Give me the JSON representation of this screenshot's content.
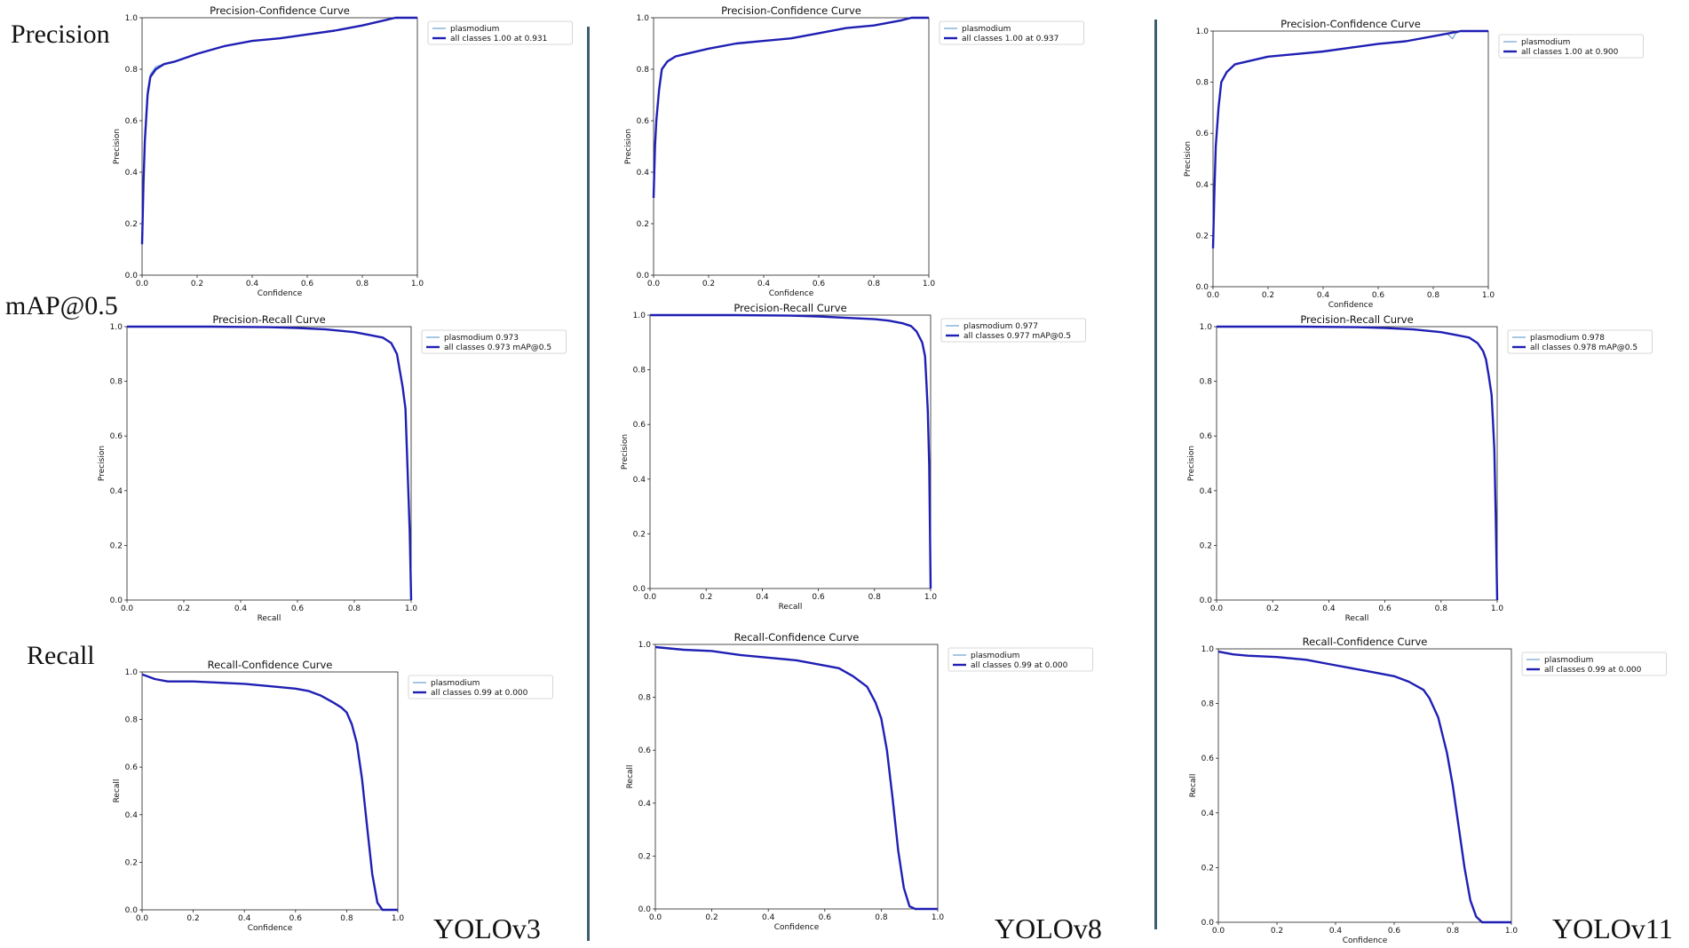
{
  "row_labels": [
    "Precision",
    "mAP@0.5",
    "Recall"
  ],
  "model_labels": [
    "YOLOv3",
    "YOLOv8",
    "YOLOv11"
  ],
  "colors": {
    "all_classes": "#1f1fb4",
    "class_line": "#6f9fd0",
    "divider": "#3b5d70"
  },
  "chart_data": [
    {
      "type": "line",
      "title": "Precision-Confidence Curve",
      "xlabel": "Confidence",
      "ylabel": "Precision",
      "xlim": [
        0,
        1
      ],
      "ylim": [
        0,
        1
      ],
      "ticks": [
        0.0,
        0.2,
        0.4,
        0.6,
        0.8,
        1.0
      ],
      "legend": "top-right",
      "series": [
        {
          "name": "plasmodium",
          "x": [
            0,
            0.005,
            0.01,
            0.02,
            0.03,
            0.05,
            0.08,
            0.12,
            0.2,
            0.3,
            0.4,
            0.5,
            0.6,
            0.7,
            0.8,
            0.88,
            0.92,
            0.95,
            1.0
          ],
          "y": [
            0.12,
            0.38,
            0.55,
            0.72,
            0.78,
            0.81,
            0.82,
            0.83,
            0.86,
            0.89,
            0.91,
            0.92,
            0.935,
            0.95,
            0.97,
            0.99,
            1.0,
            1.0,
            1.0
          ]
        },
        {
          "name": "all classes 1.00 at 0.931",
          "x": [
            0,
            0.005,
            0.01,
            0.02,
            0.03,
            0.05,
            0.08,
            0.12,
            0.2,
            0.3,
            0.4,
            0.5,
            0.6,
            0.7,
            0.8,
            0.88,
            0.92,
            0.95,
            1.0
          ],
          "y": [
            0.12,
            0.36,
            0.52,
            0.7,
            0.77,
            0.8,
            0.82,
            0.83,
            0.86,
            0.89,
            0.91,
            0.92,
            0.935,
            0.95,
            0.97,
            0.99,
            1.0,
            1.0,
            1.0
          ]
        }
      ]
    },
    {
      "type": "line",
      "title": "Precision-Confidence Curve",
      "xlabel": "Confidence",
      "ylabel": "Precision",
      "xlim": [
        0,
        1
      ],
      "ylim": [
        0,
        1
      ],
      "ticks": [
        0.0,
        0.2,
        0.4,
        0.6,
        0.8,
        1.0
      ],
      "legend": "top-right",
      "series": [
        {
          "name": "plasmodium",
          "x": [
            0,
            0.005,
            0.01,
            0.02,
            0.03,
            0.05,
            0.08,
            0.12,
            0.2,
            0.3,
            0.4,
            0.5,
            0.6,
            0.7,
            0.8,
            0.9,
            0.937,
            1.0
          ],
          "y": [
            0.3,
            0.5,
            0.6,
            0.72,
            0.8,
            0.83,
            0.85,
            0.86,
            0.88,
            0.9,
            0.91,
            0.92,
            0.94,
            0.96,
            0.97,
            0.99,
            1.0,
            1.0
          ]
        },
        {
          "name": "all classes 1.00 at 0.937",
          "x": [
            0,
            0.005,
            0.01,
            0.02,
            0.03,
            0.05,
            0.08,
            0.12,
            0.2,
            0.3,
            0.4,
            0.5,
            0.6,
            0.7,
            0.8,
            0.9,
            0.937,
            1.0
          ],
          "y": [
            0.3,
            0.5,
            0.6,
            0.72,
            0.8,
            0.83,
            0.85,
            0.86,
            0.88,
            0.9,
            0.91,
            0.92,
            0.94,
            0.96,
            0.97,
            0.99,
            1.0,
            1.0
          ]
        }
      ]
    },
    {
      "type": "line",
      "title": "Precision-Confidence Curve",
      "xlabel": "Confidence",
      "ylabel": "Precision",
      "xlim": [
        0,
        1
      ],
      "ylim": [
        0,
        1
      ],
      "ticks": [
        0.0,
        0.2,
        0.4,
        0.6,
        0.8,
        1.0
      ],
      "legend": "top-right",
      "series": [
        {
          "name": "plasmodium",
          "x": [
            0,
            0.005,
            0.01,
            0.02,
            0.03,
            0.05,
            0.08,
            0.12,
            0.2,
            0.3,
            0.4,
            0.5,
            0.6,
            0.7,
            0.8,
            0.85,
            0.87,
            0.88,
            0.9,
            1.0
          ],
          "y": [
            0.15,
            0.4,
            0.55,
            0.7,
            0.8,
            0.84,
            0.87,
            0.88,
            0.9,
            0.91,
            0.92,
            0.935,
            0.95,
            0.96,
            0.98,
            0.99,
            0.97,
            0.99,
            1.0,
            1.0
          ]
        },
        {
          "name": "all classes 1.00 at 0.900",
          "x": [
            0,
            0.005,
            0.01,
            0.02,
            0.03,
            0.05,
            0.08,
            0.12,
            0.2,
            0.3,
            0.4,
            0.5,
            0.6,
            0.7,
            0.8,
            0.85,
            0.9,
            1.0
          ],
          "y": [
            0.15,
            0.38,
            0.55,
            0.7,
            0.8,
            0.84,
            0.87,
            0.88,
            0.9,
            0.91,
            0.92,
            0.935,
            0.95,
            0.96,
            0.98,
            0.99,
            1.0,
            1.0
          ]
        }
      ]
    },
    {
      "type": "line",
      "title": "Precision-Recall Curve",
      "xlabel": "Recall",
      "ylabel": "Precision",
      "xlim": [
        0,
        1
      ],
      "ylim": [
        0,
        1
      ],
      "ticks": [
        0.0,
        0.2,
        0.4,
        0.6,
        0.8,
        1.0
      ],
      "legend": "top-right",
      "series": [
        {
          "name": "plasmodium 0.973",
          "x": [
            0,
            0.3,
            0.5,
            0.6,
            0.7,
            0.8,
            0.85,
            0.9,
            0.93,
            0.95,
            0.96,
            0.97,
            0.98,
            0.985,
            0.99,
            0.995,
            1.0
          ],
          "y": [
            1.0,
            1.0,
            0.998,
            0.995,
            0.99,
            0.98,
            0.97,
            0.96,
            0.94,
            0.9,
            0.84,
            0.78,
            0.7,
            0.55,
            0.4,
            0.25,
            0.0
          ]
        },
        {
          "name": "all classes 0.973 mAP@0.5",
          "x": [
            0,
            0.3,
            0.5,
            0.6,
            0.7,
            0.8,
            0.85,
            0.9,
            0.93,
            0.95,
            0.96,
            0.97,
            0.98,
            0.985,
            0.99,
            0.995,
            1.0
          ],
          "y": [
            1.0,
            1.0,
            0.998,
            0.995,
            0.99,
            0.98,
            0.97,
            0.96,
            0.94,
            0.9,
            0.84,
            0.78,
            0.7,
            0.55,
            0.4,
            0.25,
            0.0
          ]
        }
      ]
    },
    {
      "type": "line",
      "title": "Precision-Recall Curve",
      "xlabel": "Recall",
      "ylabel": "Precision",
      "xlim": [
        0,
        1
      ],
      "ylim": [
        0,
        1
      ],
      "ticks": [
        0.0,
        0.2,
        0.4,
        0.6,
        0.8,
        1.0
      ],
      "legend": "top-right",
      "series": [
        {
          "name": "plasmodium 0.977",
          "x": [
            0,
            0.3,
            0.5,
            0.6,
            0.7,
            0.8,
            0.85,
            0.9,
            0.93,
            0.95,
            0.97,
            0.98,
            0.985,
            0.99,
            0.995,
            1.0
          ],
          "y": [
            1.0,
            1.0,
            0.998,
            0.995,
            0.99,
            0.985,
            0.98,
            0.97,
            0.96,
            0.94,
            0.9,
            0.85,
            0.75,
            0.65,
            0.45,
            0.0
          ]
        },
        {
          "name": "all classes 0.977 mAP@0.5",
          "x": [
            0,
            0.3,
            0.5,
            0.6,
            0.7,
            0.8,
            0.85,
            0.9,
            0.93,
            0.95,
            0.97,
            0.98,
            0.985,
            0.99,
            0.995,
            1.0
          ],
          "y": [
            1.0,
            1.0,
            0.998,
            0.995,
            0.99,
            0.985,
            0.98,
            0.97,
            0.96,
            0.94,
            0.9,
            0.85,
            0.75,
            0.65,
            0.45,
            0.0
          ]
        }
      ]
    },
    {
      "type": "line",
      "title": "Precision-Recall Curve",
      "xlabel": "Recall",
      "ylabel": "Precision",
      "xlim": [
        0,
        1
      ],
      "ylim": [
        0,
        1
      ],
      "ticks": [
        0.0,
        0.2,
        0.4,
        0.6,
        0.8,
        1.0
      ],
      "legend": "top-right",
      "series": [
        {
          "name": "plasmodium 0.978",
          "x": [
            0,
            0.3,
            0.5,
            0.6,
            0.7,
            0.8,
            0.85,
            0.9,
            0.93,
            0.95,
            0.96,
            0.97,
            0.98,
            0.985,
            0.99,
            0.995,
            1.0
          ],
          "y": [
            1.0,
            1.0,
            0.998,
            0.995,
            0.99,
            0.98,
            0.97,
            0.96,
            0.94,
            0.91,
            0.88,
            0.82,
            0.75,
            0.65,
            0.55,
            0.3,
            0.0
          ]
        },
        {
          "name": "all classes 0.978 mAP@0.5",
          "x": [
            0,
            0.3,
            0.5,
            0.6,
            0.7,
            0.8,
            0.85,
            0.9,
            0.93,
            0.95,
            0.96,
            0.97,
            0.98,
            0.985,
            0.99,
            0.995,
            1.0
          ],
          "y": [
            1.0,
            1.0,
            0.998,
            0.995,
            0.99,
            0.98,
            0.97,
            0.96,
            0.94,
            0.91,
            0.88,
            0.82,
            0.75,
            0.65,
            0.55,
            0.3,
            0.0
          ]
        }
      ]
    },
    {
      "type": "line",
      "title": "Recall-Confidence Curve",
      "xlabel": "Confidence",
      "ylabel": "Recall",
      "xlim": [
        0,
        1
      ],
      "ylim": [
        0,
        1
      ],
      "ticks": [
        0.0,
        0.2,
        0.4,
        0.6,
        0.8,
        1.0
      ],
      "legend": "top-right",
      "series": [
        {
          "name": "plasmodium",
          "x": [
            0,
            0.05,
            0.1,
            0.2,
            0.3,
            0.4,
            0.5,
            0.6,
            0.65,
            0.7,
            0.75,
            0.78,
            0.8,
            0.82,
            0.84,
            0.86,
            0.88,
            0.9,
            0.92,
            0.94,
            1.0
          ],
          "y": [
            0.99,
            0.97,
            0.96,
            0.96,
            0.955,
            0.95,
            0.94,
            0.93,
            0.92,
            0.9,
            0.87,
            0.85,
            0.83,
            0.78,
            0.7,
            0.55,
            0.35,
            0.15,
            0.03,
            0.0,
            0.0
          ]
        },
        {
          "name": "all classes 0.99 at 0.000",
          "x": [
            0,
            0.05,
            0.1,
            0.2,
            0.3,
            0.4,
            0.5,
            0.6,
            0.65,
            0.7,
            0.75,
            0.78,
            0.8,
            0.82,
            0.84,
            0.86,
            0.88,
            0.9,
            0.92,
            0.94,
            1.0
          ],
          "y": [
            0.99,
            0.97,
            0.96,
            0.96,
            0.955,
            0.95,
            0.94,
            0.93,
            0.92,
            0.9,
            0.87,
            0.85,
            0.83,
            0.78,
            0.7,
            0.55,
            0.35,
            0.15,
            0.03,
            0.0,
            0.0
          ]
        }
      ]
    },
    {
      "type": "line",
      "title": "Recall-Confidence Curve",
      "xlabel": "Confidence",
      "ylabel": "Recall",
      "xlim": [
        0,
        1
      ],
      "ylim": [
        0,
        1
      ],
      "ticks": [
        0.0,
        0.2,
        0.4,
        0.6,
        0.8,
        1.0
      ],
      "legend": "top-right",
      "series": [
        {
          "name": "plasmodium",
          "x": [
            0,
            0.05,
            0.1,
            0.2,
            0.3,
            0.4,
            0.5,
            0.6,
            0.65,
            0.7,
            0.75,
            0.78,
            0.8,
            0.82,
            0.84,
            0.86,
            0.88,
            0.9,
            0.92,
            0.94,
            1.0
          ],
          "y": [
            0.99,
            0.985,
            0.98,
            0.975,
            0.96,
            0.95,
            0.94,
            0.92,
            0.91,
            0.88,
            0.84,
            0.78,
            0.72,
            0.6,
            0.42,
            0.22,
            0.08,
            0.01,
            0.0,
            0.0,
            0.0
          ]
        },
        {
          "name": "all classes 0.99 at 0.000",
          "x": [
            0,
            0.05,
            0.1,
            0.2,
            0.3,
            0.4,
            0.5,
            0.6,
            0.65,
            0.7,
            0.75,
            0.78,
            0.8,
            0.82,
            0.84,
            0.86,
            0.88,
            0.9,
            0.92,
            0.94,
            1.0
          ],
          "y": [
            0.99,
            0.985,
            0.98,
            0.975,
            0.96,
            0.95,
            0.94,
            0.92,
            0.91,
            0.88,
            0.84,
            0.78,
            0.72,
            0.6,
            0.42,
            0.22,
            0.08,
            0.01,
            0.0,
            0.0,
            0.0
          ]
        }
      ]
    },
    {
      "type": "line",
      "title": "Recall-Confidence Curve",
      "xlabel": "Confidence",
      "ylabel": "Recall",
      "xlim": [
        0,
        1
      ],
      "ylim": [
        0,
        1
      ],
      "ticks": [
        0.0,
        0.2,
        0.4,
        0.6,
        0.8,
        1.0
      ],
      "legend": "top-right",
      "series": [
        {
          "name": "plasmodium",
          "x": [
            0,
            0.05,
            0.1,
            0.2,
            0.3,
            0.4,
            0.5,
            0.6,
            0.65,
            0.7,
            0.72,
            0.75,
            0.78,
            0.8,
            0.82,
            0.84,
            0.86,
            0.88,
            0.9,
            0.92,
            1.0
          ],
          "y": [
            0.99,
            0.98,
            0.975,
            0.97,
            0.96,
            0.94,
            0.92,
            0.9,
            0.88,
            0.85,
            0.82,
            0.75,
            0.62,
            0.5,
            0.35,
            0.2,
            0.08,
            0.02,
            0.0,
            0.0,
            0.0
          ]
        },
        {
          "name": "all classes 0.99 at 0.000",
          "x": [
            0,
            0.05,
            0.1,
            0.2,
            0.3,
            0.4,
            0.5,
            0.6,
            0.65,
            0.7,
            0.72,
            0.75,
            0.78,
            0.8,
            0.82,
            0.84,
            0.86,
            0.88,
            0.9,
            0.92,
            1.0
          ],
          "y": [
            0.99,
            0.98,
            0.975,
            0.97,
            0.96,
            0.94,
            0.92,
            0.9,
            0.88,
            0.85,
            0.82,
            0.75,
            0.62,
            0.5,
            0.35,
            0.2,
            0.08,
            0.02,
            0.0,
            0.0,
            0.0
          ]
        }
      ]
    }
  ]
}
